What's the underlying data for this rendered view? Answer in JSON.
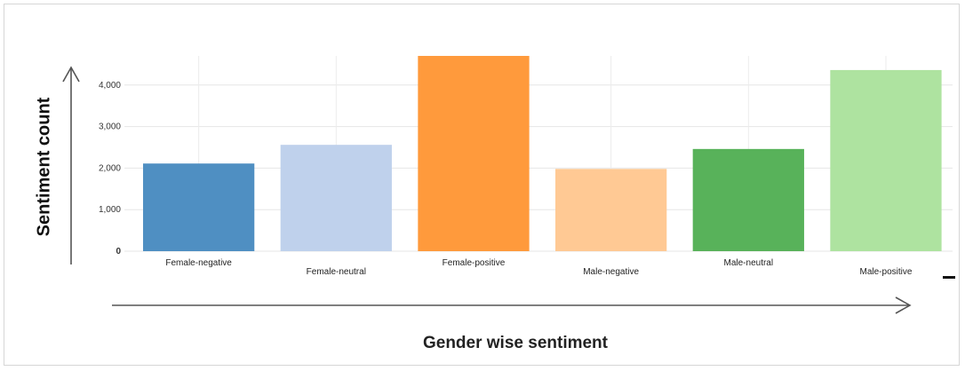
{
  "chart_data": {
    "type": "bar",
    "categories": [
      "Female-negative",
      "Female-neutral",
      "Female-positive",
      "Male-negative",
      "Male-neutral",
      "Male-positive"
    ],
    "values": [
      2110,
      2560,
      4700,
      1980,
      2460,
      4360
    ],
    "colors": [
      "#4f8fc2",
      "#bfd1ec",
      "#ff9a3c",
      "#ffc994",
      "#58b25a",
      "#aee3a0"
    ],
    "xlabel": "Gender wise sentiment",
    "ylabel": "Sentiment count",
    "ylim": [
      0,
      4700
    ],
    "yticks": [
      0,
      1000,
      2000,
      3000,
      4000
    ],
    "ytick_labels": [
      "0",
      "1,000",
      "2,000",
      "3,000",
      "4,000"
    ],
    "grid": true
  }
}
